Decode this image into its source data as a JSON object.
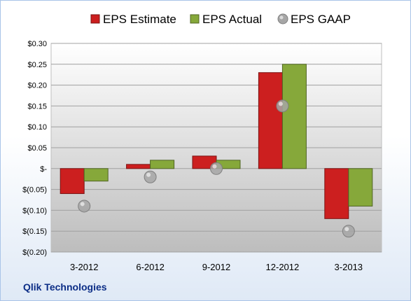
{
  "company": "Qlik Technologies",
  "chart_data": {
    "type": "bar",
    "categories": [
      "3-2012",
      "6-2012",
      "9-2012",
      "12-2012",
      "3-2013"
    ],
    "series": [
      {
        "name": "EPS Estimate",
        "values": [
          -0.06,
          0.01,
          0.03,
          0.23,
          -0.12
        ],
        "color": "#cc1f1f",
        "kind": "bar"
      },
      {
        "name": "EPS Actual",
        "values": [
          -0.03,
          0.02,
          0.02,
          0.25,
          -0.09
        ],
        "color": "#86a83a",
        "kind": "bar"
      },
      {
        "name": "EPS GAAP",
        "values": [
          -0.09,
          -0.02,
          0.0,
          0.15,
          -0.15
        ],
        "color": "#a6a6a6",
        "kind": "marker"
      }
    ],
    "yticks": [
      0.3,
      0.25,
      0.2,
      0.15,
      0.1,
      0.05,
      0.0,
      -0.05,
      -0.1,
      -0.15,
      -0.2
    ],
    "ytick_labels": [
      "$0.30",
      "$0.25",
      "$0.20",
      "$0.15",
      "$0.10",
      "$0.05",
      "$-",
      "$(0.05)",
      "$(0.10)",
      "$(0.15)",
      "$(0.20)"
    ],
    "ylim": [
      -0.2,
      0.3
    ],
    "grid": true,
    "legend": "top"
  }
}
